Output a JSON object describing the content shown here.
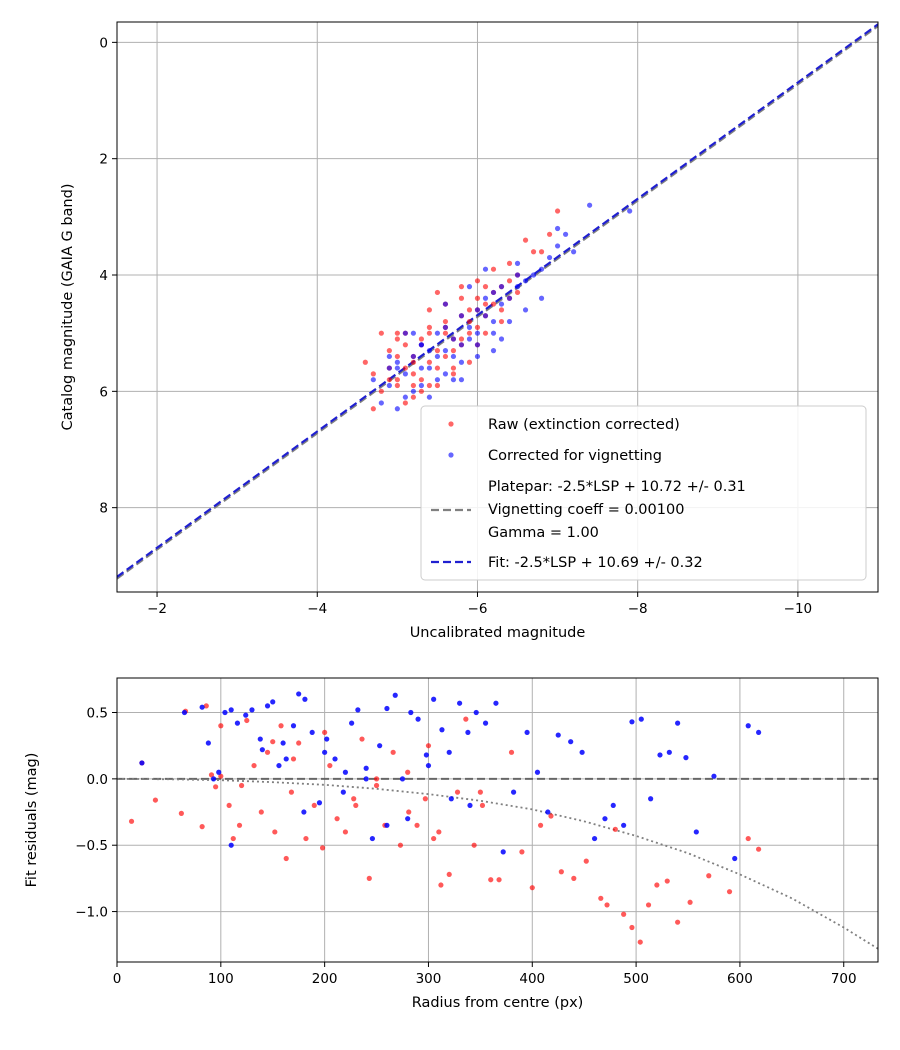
{
  "chart_data": [
    {
      "type": "scatter",
      "xlabel": "Uncalibrated magnitude",
      "ylabel": "Catalog magnitude (GAIA G band)",
      "xlim": [
        -1.5,
        -11.0
      ],
      "ylim": [
        9.45,
        -0.35
      ],
      "x_inverted": true,
      "y_inverted": true,
      "grid": true,
      "legend_position": "lower-right",
      "xticks": [
        -2,
        -4,
        -6,
        -8,
        -10
      ],
      "xtick_labels": [
        "−2",
        "−4",
        "−6",
        "−8",
        "−10"
      ],
      "yticks": [
        0,
        2,
        4,
        6,
        8
      ],
      "ytick_labels": [
        "0",
        "2",
        "4",
        "6",
        "8"
      ],
      "colors": {
        "raw": "#ff0000",
        "corrected": "#0000ff",
        "platepar_line": "#808080",
        "fit_line": "#2020d0"
      },
      "series": [
        {
          "name": "Raw (extinction corrected)",
          "kind": "points",
          "x": [
            -4.7,
            -4.8,
            -4.9,
            -5.0,
            -5.0,
            -5.1,
            -5.1,
            -5.2,
            -5.2,
            -5.3,
            -5.3,
            -5.4,
            -5.4,
            -5.5,
            -5.5,
            -5.6,
            -5.6,
            -5.7,
            -5.7,
            -5.8,
            -5.8,
            -5.9,
            -5.9,
            -6.0,
            -6.0,
            -6.1,
            -6.2,
            -6.3,
            -6.4,
            -6.5,
            -4.6,
            -4.9,
            -5.1,
            -5.3,
            -5.5,
            -5.7,
            -5.9,
            -6.1,
            -6.3,
            -6.5,
            -4.8,
            -5.0,
            -5.2,
            -5.4,
            -5.6,
            -5.8,
            -6.0,
            -6.2,
            -6.4,
            -6.6,
            -5.1,
            -5.4,
            -5.7,
            -6.0,
            -6.3,
            -6.9,
            -7.0,
            -5.0,
            -5.2,
            -5.6,
            -5.8,
            -6.2,
            -6.7,
            -4.9,
            -5.3,
            -5.5,
            -5.9,
            -6.1,
            -4.7,
            -5.0,
            -5.4,
            -5.8,
            -6.0,
            -6.4,
            -5.2,
            -5.6,
            -6.1,
            -6.8
          ],
          "y": [
            5.7,
            6.0,
            5.3,
            5.1,
            5.9,
            5.0,
            5.6,
            5.4,
            6.1,
            5.2,
            5.8,
            4.9,
            5.5,
            5.3,
            5.9,
            4.8,
            5.4,
            5.1,
            5.7,
            4.7,
            5.2,
            4.6,
            5.0,
            4.4,
            4.9,
            4.7,
            4.3,
            4.2,
            4.4,
            4.0,
            5.5,
            5.8,
            5.2,
            6.0,
            5.6,
            5.3,
            5.5,
            5.0,
            4.6,
            4.3,
            5.0,
            5.4,
            5.7,
            4.6,
            5.0,
            4.4,
            4.1,
            4.5,
            3.8,
            3.4,
            6.2,
            5.9,
            5.6,
            5.2,
            4.8,
            3.3,
            2.9,
            5.0,
            5.5,
            4.5,
            4.2,
            3.9,
            3.6,
            5.6,
            5.1,
            4.3,
            4.8,
            4.5,
            6.3,
            5.8,
            5.0,
            5.1,
            4.6,
            4.1,
            5.9,
            4.9,
            4.2,
            3.6
          ]
        },
        {
          "name": "Corrected for vignetting",
          "kind": "points",
          "x": [
            -4.8,
            -4.9,
            -5.0,
            -5.1,
            -5.1,
            -5.2,
            -5.3,
            -5.3,
            -5.4,
            -5.5,
            -5.5,
            -5.6,
            -5.6,
            -5.7,
            -5.8,
            -5.8,
            -5.9,
            -6.0,
            -6.0,
            -6.1,
            -6.2,
            -6.2,
            -6.3,
            -6.4,
            -6.5,
            -6.6,
            -6.7,
            -6.8,
            -6.9,
            -7.0,
            -7.1,
            -4.7,
            -5.0,
            -5.2,
            -5.4,
            -5.6,
            -5.8,
            -6.0,
            -6.2,
            -6.4,
            -6.6,
            -4.9,
            -5.1,
            -5.3,
            -5.5,
            -5.7,
            -5.9,
            -6.1,
            -6.3,
            -6.5,
            -7.2,
            -7.4,
            -7.9,
            -5.0,
            -5.4,
            -5.7,
            -6.0,
            -6.3,
            -6.8,
            -5.2,
            -5.6,
            -5.9,
            -6.1,
            -6.5,
            -4.9,
            -5.3,
            -5.8,
            -6.2,
            -7.0
          ],
          "y": [
            6.2,
            5.9,
            5.5,
            6.1,
            5.7,
            5.4,
            5.9,
            5.2,
            5.6,
            5.0,
            5.4,
            4.9,
            5.3,
            5.1,
            4.7,
            5.2,
            4.9,
            4.6,
            5.0,
            4.7,
            4.3,
            4.8,
            4.5,
            4.4,
            4.2,
            4.1,
            4.0,
            3.9,
            3.7,
            3.5,
            3.3,
            5.8,
            5.6,
            6.0,
            5.3,
            5.7,
            5.5,
            5.2,
            5.0,
            4.8,
            4.6,
            5.4,
            5.0,
            5.6,
            5.8,
            5.4,
            5.1,
            4.4,
            4.2,
            4.0,
            3.6,
            2.8,
            2.9,
            6.3,
            6.1,
            5.8,
            5.4,
            5.1,
            4.4,
            5.0,
            4.5,
            4.2,
            3.9,
            3.8,
            5.6,
            5.2,
            5.8,
            5.3,
            3.2
          ]
        },
        {
          "name": "Platepar: -2.5*LSP + 10.72 +/- 0.31\nVignetting coeff = 0.00100\nGamma = 1.00",
          "kind": "line",
          "style": "dashed",
          "x": [
            -1.5,
            -11.0
          ],
          "y": [
            9.22,
            -0.28
          ]
        },
        {
          "name": "Fit: -2.5*LSP + 10.69 +/- 0.32",
          "kind": "line",
          "style": "dashed",
          "x": [
            -1.5,
            -11.0
          ],
          "y": [
            9.19,
            -0.31
          ]
        }
      ],
      "legend": [
        {
          "label": "Raw (extinction corrected)",
          "marker": "point",
          "color": "#ff0000"
        },
        {
          "label": "Corrected for vignetting",
          "marker": "point",
          "color": "#0000ff"
        },
        {
          "label_lines": [
            "Platepar: -2.5*LSP + 10.72 +/- 0.31",
            "Vignetting coeff = 0.00100",
            "Gamma = 1.00"
          ],
          "marker": "dash",
          "color": "#808080"
        },
        {
          "label": "Fit: -2.5*LSP + 10.69 +/- 0.32",
          "marker": "dash",
          "color": "#2020d0"
        }
      ]
    },
    {
      "type": "scatter",
      "xlabel": "Radius from centre (px)",
      "ylabel": "Fit residuals (mag)",
      "xlim": [
        0,
        733
      ],
      "ylim": [
        -1.38,
        0.76
      ],
      "grid": true,
      "xticks": [
        0,
        100,
        200,
        300,
        400,
        500,
        600,
        700
      ],
      "xtick_labels": [
        "0",
        "100",
        "200",
        "300",
        "400",
        "500",
        "600",
        "700"
      ],
      "yticks": [
        0.5,
        0.0,
        -0.5,
        -1.0
      ],
      "ytick_labels": [
        "0.5",
        "0.0",
        "−0.5",
        "−1.0"
      ],
      "series": [
        {
          "name": "raw residuals",
          "kind": "points",
          "color": "#ff0000",
          "x": [
            14,
            24,
            37,
            62,
            66,
            82,
            86,
            91,
            95,
            100,
            108,
            112,
            118,
            125,
            132,
            139,
            145,
            152,
            158,
            163,
            168,
            175,
            182,
            190,
            198,
            205,
            212,
            220,
            228,
            236,
            243,
            250,
            258,
            266,
            273,
            281,
            289,
            297,
            305,
            312,
            320,
            328,
            336,
            344,
            352,
            360,
            368,
            380,
            390,
            400,
            408,
            418,
            428,
            440,
            452,
            466,
            472,
            480,
            488,
            496,
            504,
            512,
            520,
            530,
            540,
            552,
            570,
            590,
            608,
            618,
            100,
            150,
            200,
            250,
            300,
            350,
            120,
            170,
            230,
            280,
            310
          ],
          "y": [
            -0.32,
            0.12,
            -0.16,
            -0.26,
            0.51,
            -0.36,
            0.55,
            0.03,
            -0.06,
            0.02,
            -0.2,
            -0.45,
            -0.35,
            0.44,
            0.1,
            -0.25,
            0.2,
            -0.4,
            0.4,
            -0.6,
            -0.1,
            0.27,
            -0.45,
            -0.2,
            -0.52,
            0.1,
            -0.3,
            -0.4,
            -0.15,
            0.3,
            -0.75,
            -0.05,
            -0.35,
            0.2,
            -0.5,
            -0.25,
            -0.35,
            -0.15,
            -0.45,
            -0.8,
            -0.72,
            -0.1,
            0.45,
            -0.5,
            -0.2,
            -0.76,
            -0.76,
            0.2,
            -0.55,
            -0.82,
            -0.35,
            -0.28,
            -0.7,
            -0.75,
            -0.62,
            -0.9,
            -0.95,
            -0.38,
            -1.02,
            -1.12,
            -1.23,
            -0.95,
            -0.8,
            -0.77,
            -1.08,
            -0.93,
            -0.73,
            -0.85,
            -0.45,
            -0.53,
            0.4,
            0.28,
            0.35,
            0.0,
            0.25,
            -0.1,
            -0.05,
            0.15,
            -0.2,
            0.05,
            -0.4
          ]
        },
        {
          "name": "corrected residuals",
          "kind": "points",
          "color": "#0000ff",
          "x": [
            24,
            65,
            82,
            88,
            93,
            98,
            104,
            110,
            116,
            124,
            130,
            138,
            145,
            150,
            156,
            163,
            170,
            175,
            181,
            188,
            195,
            202,
            210,
            218,
            226,
            232,
            240,
            246,
            253,
            260,
            268,
            275,
            283,
            290,
            298,
            305,
            313,
            322,
            330,
            338,
            346,
            355,
            365,
            372,
            382,
            395,
            405,
            415,
            425,
            437,
            448,
            460,
            470,
            478,
            488,
            496,
            505,
            514,
            523,
            532,
            540,
            548,
            558,
            575,
            595,
            608,
            618,
            140,
            180,
            220,
            260,
            300,
            340,
            110,
            160,
            200,
            240,
            280,
            320
          ],
          "y": [
            0.12,
            0.5,
            0.54,
            0.27,
            0.0,
            0.05,
            0.5,
            0.52,
            0.42,
            0.48,
            0.52,
            0.3,
            0.55,
            0.58,
            0.1,
            0.15,
            0.4,
            0.64,
            0.6,
            0.35,
            -0.18,
            0.3,
            0.15,
            -0.1,
            0.42,
            0.52,
            0.08,
            -0.45,
            0.25,
            0.53,
            0.63,
            0.0,
            0.5,
            0.45,
            0.18,
            0.6,
            0.37,
            -0.15,
            0.57,
            0.35,
            0.5,
            0.42,
            0.57,
            -0.55,
            -0.1,
            0.35,
            0.05,
            -0.25,
            0.33,
            0.28,
            0.2,
            -0.45,
            -0.3,
            -0.2,
            -0.35,
            0.43,
            0.45,
            -0.15,
            0.18,
            0.2,
            0.42,
            0.16,
            -0.4,
            0.02,
            -0.6,
            0.4,
            0.35,
            0.22,
            -0.25,
            0.05,
            -0.35,
            0.1,
            -0.2,
            -0.5,
            0.27,
            0.2,
            0.0,
            -0.3,
            0.2
          ]
        },
        {
          "name": "zero line",
          "kind": "line",
          "style": "dashed",
          "color": "#555555",
          "x": [
            0,
            733
          ],
          "y": [
            0.0,
            0.0
          ]
        },
        {
          "name": "vignetting trend",
          "kind": "line",
          "style": "dotted",
          "color": "#808080",
          "x": [
            0,
            50,
            100,
            150,
            200,
            250,
            300,
            350,
            400,
            450,
            500,
            550,
            600,
            650,
            700,
            733
          ],
          "y": [
            0.0,
            -0.003,
            -0.01,
            -0.025,
            -0.045,
            -0.075,
            -0.115,
            -0.165,
            -0.23,
            -0.32,
            -0.43,
            -0.56,
            -0.72,
            -0.9,
            -1.12,
            -1.28
          ]
        }
      ]
    }
  ]
}
